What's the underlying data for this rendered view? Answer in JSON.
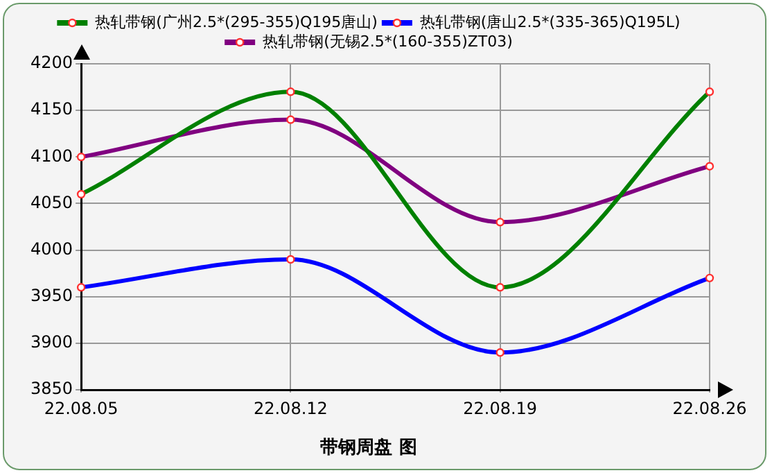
{
  "chart_data": {
    "type": "line",
    "title": "带钢周盘 图",
    "categories": [
      "22.08.05",
      "22.08.12",
      "22.08.19",
      "22.08.26"
    ],
    "series": [
      {
        "name": "热轧带钢(广州2.5*(295-355)Q195唐山)",
        "color": "#008000",
        "values": [
          4060,
          4170,
          3960,
          4170
        ]
      },
      {
        "name": "热轧带钢(唐山2.5*(335-365)Q195L)",
        "color": "#0000ff",
        "values": [
          3960,
          3990,
          3890,
          3970
        ]
      },
      {
        "name": "热轧带钢(无锡2.5*(160-355)ZT03)",
        "color": "#800080",
        "values": [
          4100,
          4140,
          4030,
          4090
        ]
      }
    ],
    "ylim": [
      3850,
      4200
    ],
    "yticks": [
      3850,
      3900,
      3950,
      4000,
      4050,
      4100,
      4150,
      4200
    ],
    "grid": true,
    "legend": "top",
    "marker": "circle",
    "line_style": "solid"
  }
}
